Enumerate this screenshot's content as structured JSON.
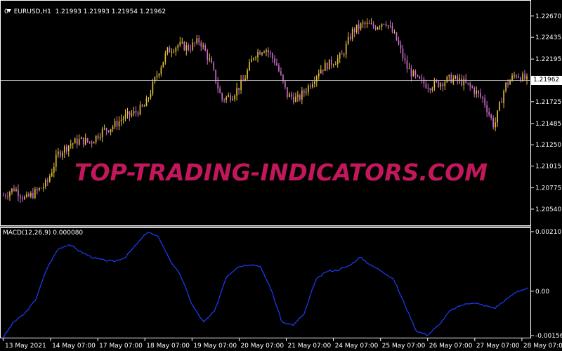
{
  "header": {
    "symbol": "EURUSD,H1",
    "ohlc": "1.21993 1.21993 1.21954 1.21962",
    "subwindow_index": "0"
  },
  "current_price": "1.21962",
  "watermark": "TOP-TRADING-INDICATORS.COM",
  "macd": {
    "label": "MACD(12,26,9) 0.000080"
  },
  "colors": {
    "background": "#000000",
    "bull": "#e8c33a",
    "bear": "#d26fd2",
    "macd_line": "#1f3dff",
    "watermark": "#c2185b"
  },
  "chart_data": [
    {
      "type": "candlestick",
      "title": "EURUSD,H1",
      "ylim": [
        1.204,
        1.228
      ],
      "y_ticks": [
        "1.22670",
        "1.22435",
        "1.22195",
        "1.21962",
        "1.21725",
        "1.21485",
        "1.21250",
        "1.21015",
        "1.20775",
        "1.20540"
      ],
      "x_ticks": [
        "13 May 2021",
        "14 May 07:00",
        "17 May 07:00",
        "18 May 07:00",
        "19 May 07:00",
        "20 May 07:00",
        "21 May 07:00",
        "24 May 07:00",
        "25 May 07:00",
        "26 May 07:00",
        "27 May 07:00",
        "28 May 07:00"
      ],
      "close_path": [
        1.2069,
        1.2077,
        1.2065,
        1.2073,
        1.2083,
        1.2115,
        1.2125,
        1.213,
        1.2128,
        1.214,
        1.2145,
        1.2155,
        1.216,
        1.2168,
        1.22,
        1.2228,
        1.2235,
        1.2232,
        1.224,
        1.2215,
        1.2175,
        1.218,
        1.2195,
        1.2225,
        1.2232,
        1.2215,
        1.218,
        1.2175,
        1.219,
        1.2208,
        1.2215,
        1.2222,
        1.225,
        1.2258,
        1.2255,
        1.2262,
        1.2242,
        1.221,
        1.2196,
        1.219,
        1.2193,
        1.2198,
        1.2195,
        1.2187,
        1.2175,
        1.2145,
        1.219,
        1.2203,
        1.2196
      ],
      "bull_color": "#e8c33a",
      "bear_color": "#d26fd2",
      "last_price_line": 1.21962
    },
    {
      "type": "line",
      "title": "MACD(12,26,9) 0.000080",
      "ylim": [
        -0.001568,
        0.002103
      ],
      "y_ticks": [
        "0.002103",
        "0.00",
        "-0.001568"
      ],
      "series": [
        {
          "name": "MACD(12,26,9)",
          "values": [
            -0.0017,
            -0.0011,
            -0.0008,
            -0.0003,
            0.0008,
            0.0015,
            0.00165,
            0.0014,
            0.0012,
            0.0011,
            0.00105,
            0.0012,
            0.00165,
            0.0021,
            0.0019,
            0.0011,
            0.0005,
            -0.0005,
            -0.0011,
            -0.0007,
            0.0005,
            0.00085,
            0.00095,
            0.0009,
            0.0001,
            -0.0011,
            -0.0012,
            -0.0008,
            0.0004,
            0.0007,
            0.00075,
            0.0009,
            0.0012,
            0.0009,
            0.0007,
            0.0004,
            -0.0005,
            -0.0014,
            -0.00155,
            -0.0012,
            -0.0007,
            -0.0005,
            -0.0004,
            -0.0005,
            -0.0006,
            -0.0003,
            0.0,
            0.0001
          ]
        }
      ],
      "zero_line": 0,
      "color": "#1f3dff"
    }
  ]
}
